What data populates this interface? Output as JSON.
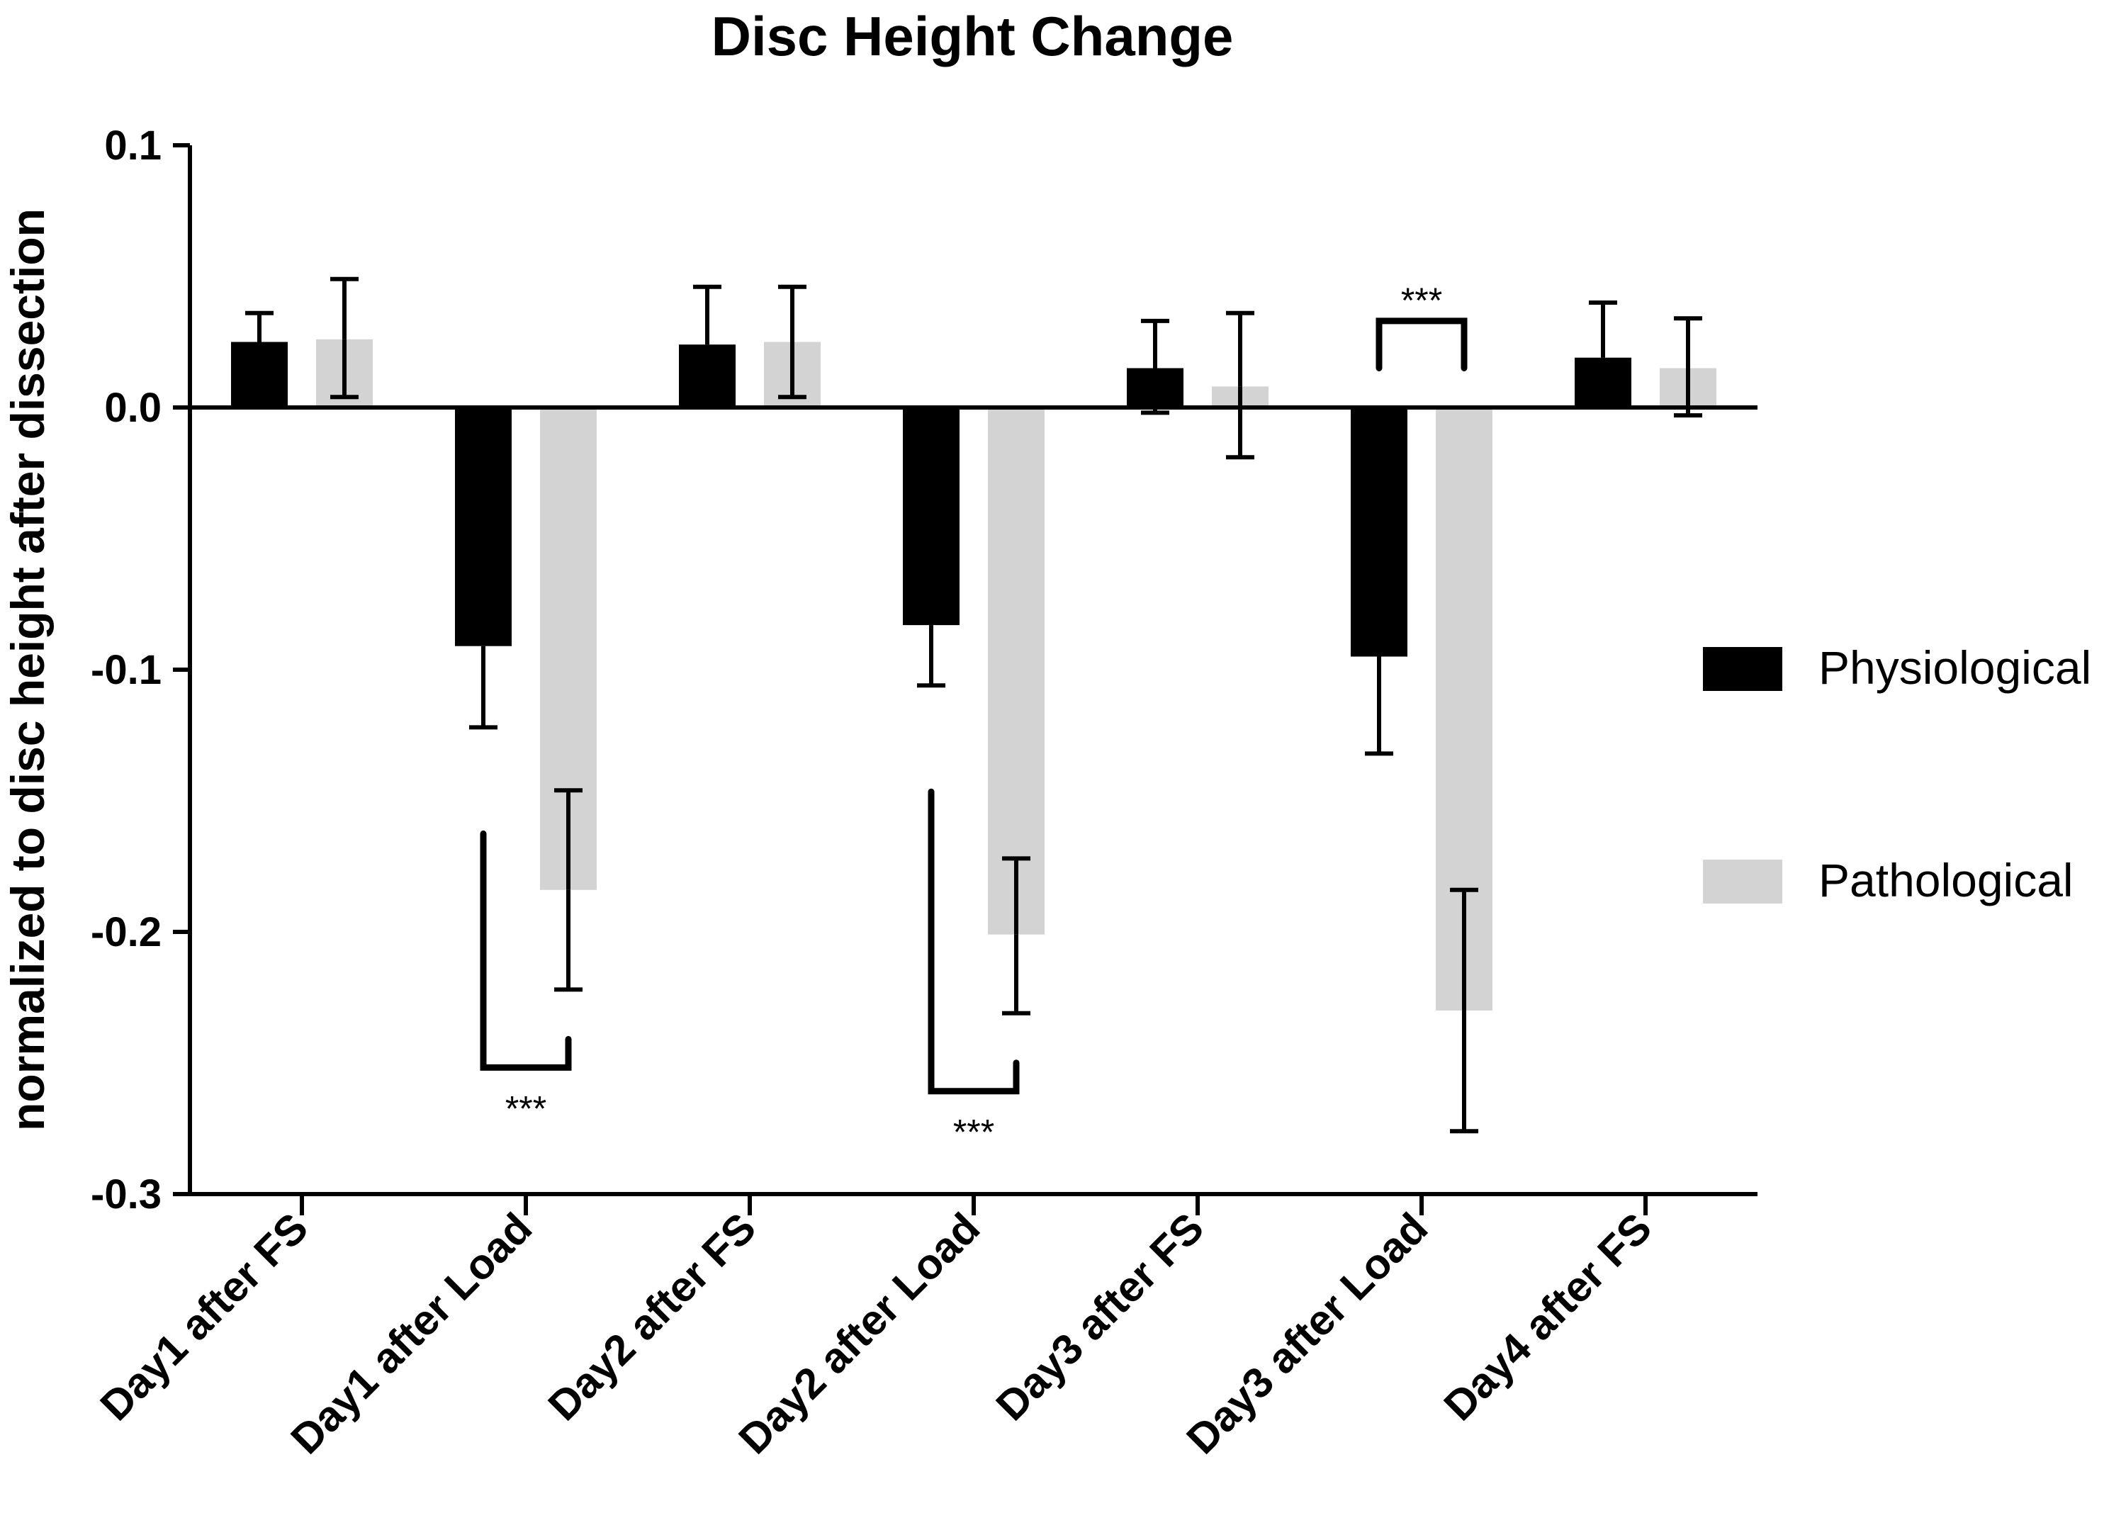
{
  "chart_data": {
    "type": "bar",
    "title": "Disc Height Change",
    "xlabel": "",
    "ylabel": "normalized to disc height after dissection",
    "ylim": [
      -0.3,
      0.1
    ],
    "yticks": [
      0.1,
      0.0,
      -0.1,
      -0.2,
      -0.3
    ],
    "ytick_labels": [
      "0.1",
      "0.0",
      "-0.1",
      "-0.2",
      "-0.3"
    ],
    "categories": [
      "Day1 after FS",
      "Day1 after Load",
      "Day2 after FS",
      "Day2 after Load",
      "Day3 after FS",
      "Day3 after Load",
      "Day4 after FS"
    ],
    "series": [
      {
        "name": "Physiological",
        "color": "#000000",
        "values": [
          0.025,
          -0.091,
          0.024,
          -0.083,
          0.015,
          -0.095,
          0.019
        ],
        "err_upper": [
          0.036,
          null,
          0.046,
          null,
          0.033,
          null,
          0.04
        ],
        "err_lower": [
          null,
          -0.122,
          null,
          -0.106,
          -0.002,
          -0.132,
          null
        ]
      },
      {
        "name": "Pathological",
        "color": "#d3d3d3",
        "values": [
          0.026,
          -0.184,
          0.025,
          -0.201,
          0.008,
          -0.23,
          0.015
        ],
        "err_upper": [
          0.049,
          -0.146,
          0.046,
          -0.172,
          0.036,
          -0.184,
          0.034
        ],
        "err_lower": [
          0.004,
          -0.222,
          0.004,
          -0.231,
          -0.019,
          -0.276,
          -0.003
        ]
      }
    ],
    "significance": [
      {
        "category_index": 1,
        "label": "***",
        "position": "below"
      },
      {
        "category_index": 3,
        "label": "***",
        "position": "below"
      },
      {
        "category_index": 5,
        "label": "***",
        "position": "above"
      }
    ],
    "legend": {
      "position": "right",
      "entries": [
        "Physiological",
        "Pathological"
      ]
    }
  }
}
